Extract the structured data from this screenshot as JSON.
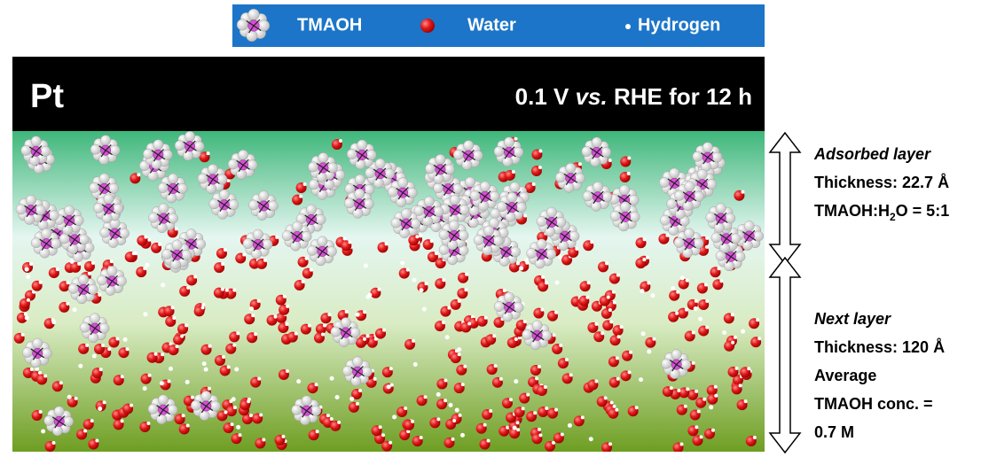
{
  "legend": {
    "items": [
      "TMAOH",
      "Water",
      "Hydrogen"
    ]
  },
  "header": {
    "metal": "Pt",
    "condition": {
      "before": "0.1 V ",
      "italic": "vs.",
      "after": " RHE for 12 h"
    }
  },
  "adsorbed_layer": {
    "title": "Adsorbed layer",
    "thickness": "Thickness: 22.7 Å",
    "ratio": {
      "before": "TMAOH:H",
      "sub": "2",
      "after": "O = 5:1"
    }
  },
  "next_layer": {
    "title": "Next layer",
    "lines": [
      "Thickness: 120 Å",
      "Average",
      "TMAOH conc. =",
      "0.7 M"
    ]
  }
}
